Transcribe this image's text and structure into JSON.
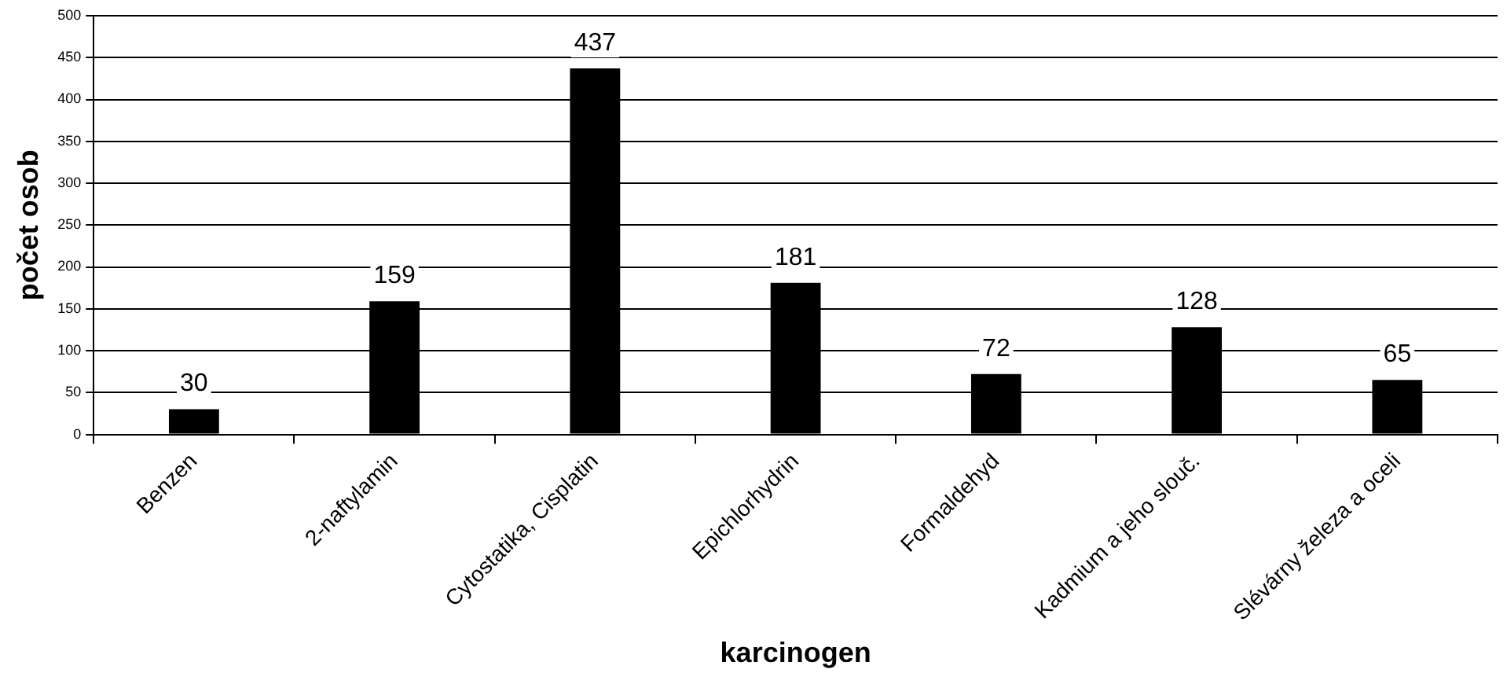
{
  "chart_data": {
    "type": "bar",
    "xlabel": "karcinogen",
    "ylabel": "počet osob",
    "categories": [
      "Benzen",
      "2-naftylamin",
      "Cytostatika, Cisplatin",
      "Epichlorhydrin",
      "Formaldehyd",
      "Kadmium a jeho slouč.",
      "Slévárny železa a oceli"
    ],
    "values": [
      30,
      159,
      437,
      181,
      72,
      128,
      65
    ],
    "color": "#000000",
    "ylim": [
      0,
      500
    ],
    "yticks": [
      0,
      50,
      100,
      150,
      200,
      250,
      300,
      350,
      400,
      450,
      500
    ],
    "grid": "y",
    "data_labels": true
  }
}
